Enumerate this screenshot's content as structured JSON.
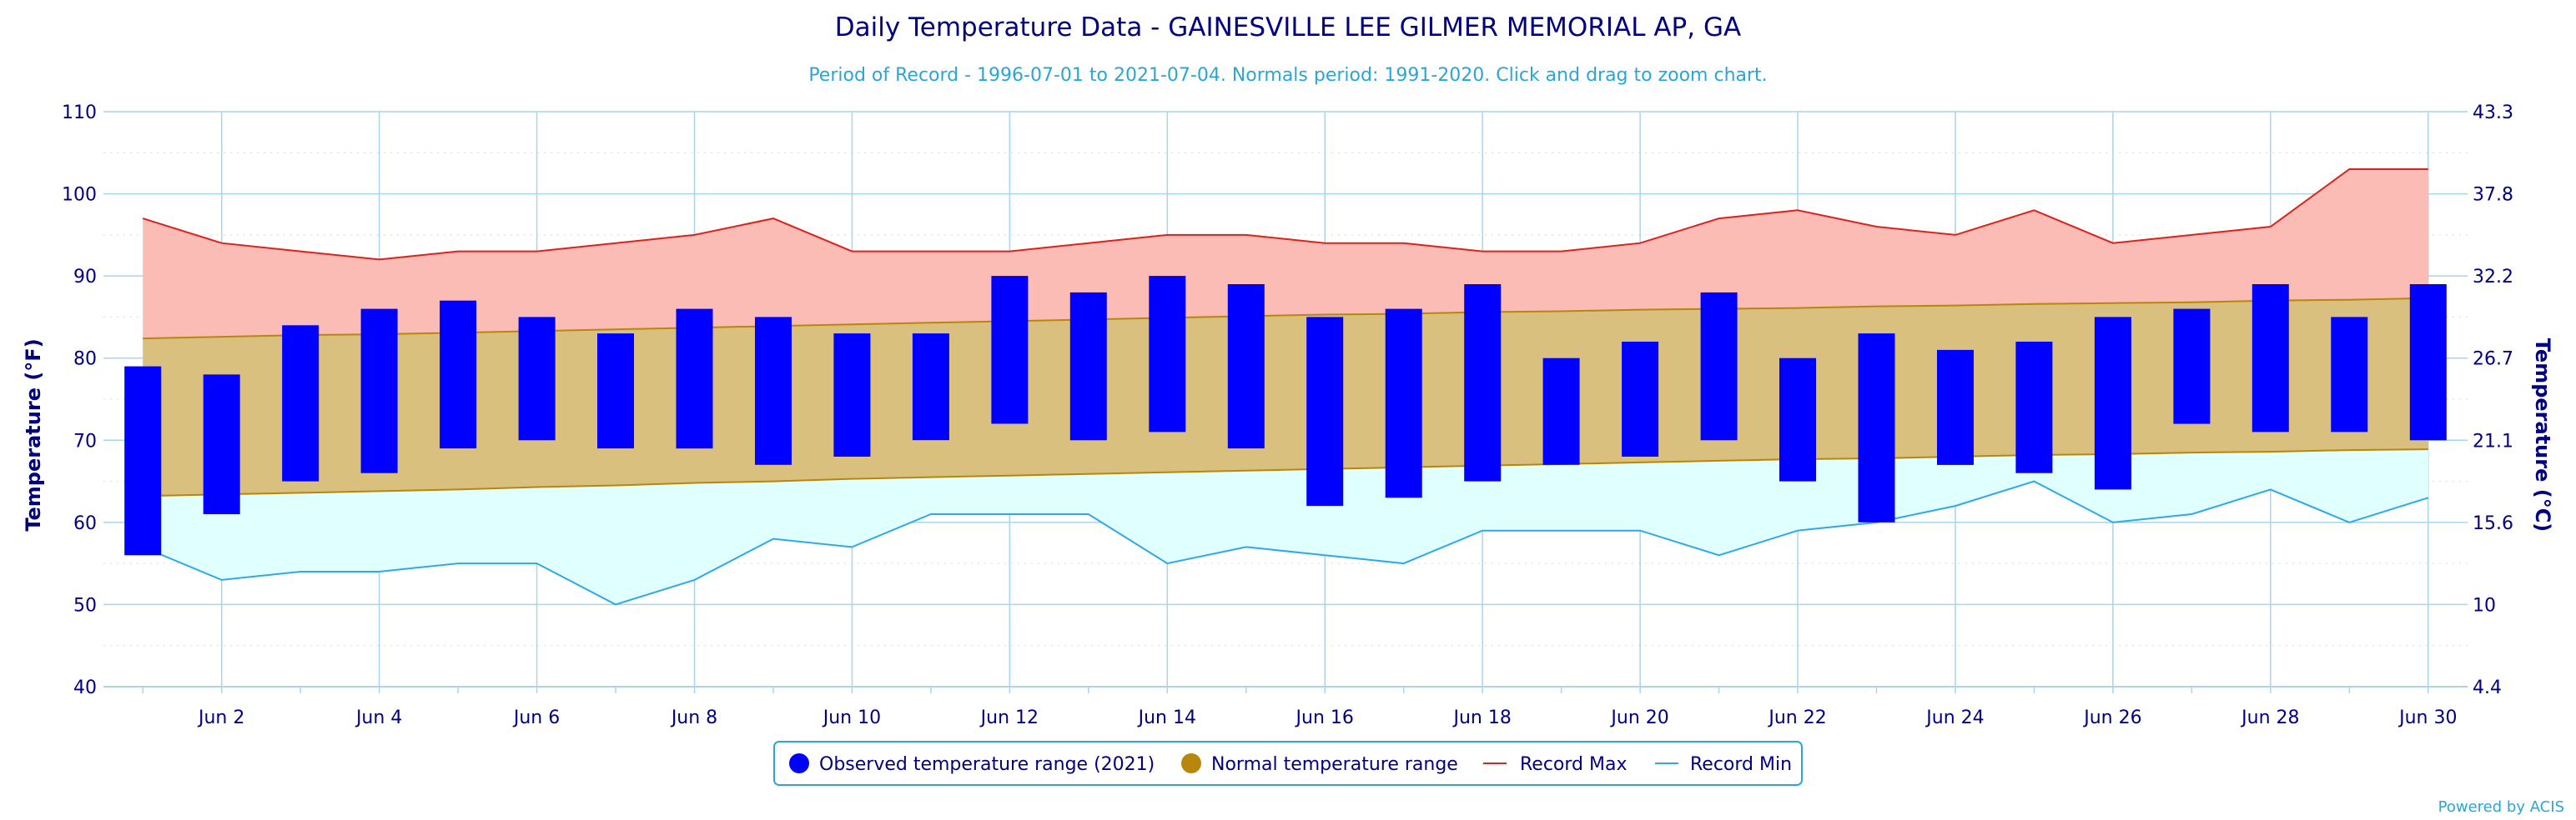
{
  "title": "Daily Temperature Data - GAINESVILLE LEE GILMER MEMORIAL AP, GA",
  "subtitle": "Period of Record - 1996-07-01 to 2021-07-04. Normals period: 1991-2020. Click and drag to zoom chart.",
  "credits": "Powered by ACIS",
  "colors": {
    "observed": "#0000ff",
    "normal_fill": "#d9c07f",
    "normal_line": "#b8860b",
    "record_max_fill": "#fbbcb6",
    "record_max_line": "#e0201b",
    "record_min_fill": "#e0ffff",
    "record_min_line": "#30a8e8",
    "grid": "#a8d4ec",
    "text": "#000080"
  },
  "legend": [
    {
      "label": "Observed temperature range (2021)",
      "icon": "blue-circle-icon"
    },
    {
      "label": "Normal temperature range",
      "icon": "gold-circle-icon"
    },
    {
      "label": "Record Max",
      "icon": "red-line-icon"
    },
    {
      "label": "Record Min",
      "icon": "cyan-line-icon"
    }
  ],
  "chart_data": {
    "type": "bar",
    "xlabel": "",
    "ylabel_left": "Temperature (°F)",
    "ylabel_right": "Temperature (°C)",
    "ylim": [
      40,
      110
    ],
    "yticks_left": [
      "40",
      "50",
      "60",
      "70",
      "80",
      "90",
      "100",
      "110"
    ],
    "yticks_right": [
      "4.4",
      "10",
      "15.6",
      "21.1",
      "26.7",
      "32.2",
      "37.8",
      "43.3"
    ],
    "x_days": [
      1,
      2,
      3,
      4,
      5,
      6,
      7,
      8,
      9,
      10,
      11,
      12,
      13,
      14,
      15,
      16,
      17,
      18,
      19,
      20,
      21,
      22,
      23,
      24,
      25,
      26,
      27,
      28,
      29,
      30
    ],
    "xtick_labels": [
      "Jun 2",
      "Jun 4",
      "Jun 6",
      "Jun 8",
      "Jun 10",
      "Jun 12",
      "Jun 14",
      "Jun 16",
      "Jun 18",
      "Jun 20",
      "Jun 22",
      "Jun 24",
      "Jun 26",
      "Jun 28",
      "Jun 30"
    ],
    "xtick_days": [
      2,
      4,
      6,
      8,
      10,
      12,
      14,
      16,
      18,
      20,
      22,
      24,
      26,
      28,
      30
    ],
    "observed_high": [
      79,
      78,
      84,
      86,
      87,
      85,
      83,
      86,
      85,
      83,
      83,
      90,
      88,
      90,
      89,
      85,
      86,
      89,
      80,
      82,
      88,
      80,
      83,
      81,
      82,
      85,
      86,
      89,
      85,
      89
    ],
    "observed_low": [
      56,
      61,
      65,
      66,
      69,
      70,
      69,
      69,
      67,
      68,
      70,
      72,
      70,
      71,
      69,
      62,
      63,
      65,
      67,
      68,
      70,
      65,
      60,
      67,
      66,
      64,
      72,
      71,
      71,
      70
    ],
    "normal_high": [
      82.4,
      82.6,
      82.8,
      82.9,
      83.1,
      83.3,
      83.5,
      83.7,
      83.9,
      84.1,
      84.3,
      84.5,
      84.7,
      84.9,
      85.1,
      85.3,
      85.4,
      85.6,
      85.7,
      85.9,
      86.0,
      86.1,
      86.3,
      86.4,
      86.6,
      86.7,
      86.8,
      87.0,
      87.1,
      87.3
    ],
    "normal_low": [
      63.2,
      63.4,
      63.6,
      63.8,
      64.0,
      64.3,
      64.5,
      64.8,
      65.0,
      65.3,
      65.5,
      65.7,
      65.9,
      66.1,
      66.3,
      66.5,
      66.7,
      66.9,
      67.1,
      67.3,
      67.5,
      67.7,
      67.8,
      68.0,
      68.2,
      68.3,
      68.5,
      68.6,
      68.8,
      68.9
    ],
    "record_max": [
      97,
      94,
      93,
      92,
      93,
      93,
      94,
      95,
      97,
      93,
      93,
      93,
      94,
      95,
      95,
      94,
      94,
      93,
      93,
      94,
      97,
      98,
      96,
      95,
      98,
      94,
      95,
      96,
      103,
      103
    ],
    "record_min": [
      57,
      53,
      54,
      54,
      55,
      55,
      50,
      53,
      58,
      57,
      61,
      61,
      61,
      55,
      57,
      56,
      55,
      59,
      59,
      59,
      56,
      59,
      60,
      62,
      65,
      60,
      61,
      64,
      60,
      63
    ],
    "legend_position": "bottom-center",
    "grid": true
  }
}
